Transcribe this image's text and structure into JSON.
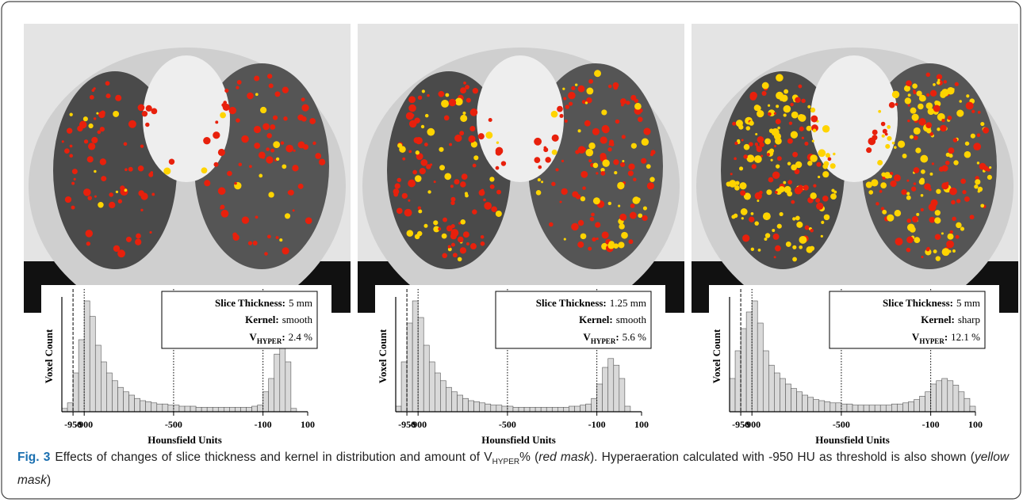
{
  "chart_data": [
    {
      "type": "histogram",
      "y_label": "Voxel Count",
      "x_label": "Hounsfield Units",
      "xlim": [
        -1000,
        100
      ],
      "xticks": [
        -950,
        -900,
        -500,
        -100,
        100
      ],
      "bins": [
        -1000,
        -975,
        -950,
        -925,
        -900,
        -875,
        -850,
        -825,
        -800,
        -775,
        -750,
        -725,
        -700,
        -675,
        -650,
        -625,
        -600,
        -575,
        -550,
        -525,
        -500,
        -475,
        -450,
        -425,
        -400,
        -375,
        -350,
        -325,
        -300,
        -275,
        -250,
        -225,
        -200,
        -175,
        -150,
        -125,
        -100,
        -75,
        -50,
        -25,
        0,
        25,
        50,
        75,
        100
      ],
      "values": [
        3,
        8,
        35,
        65,
        100,
        86,
        60,
        45,
        35,
        28,
        22,
        18,
        15,
        12,
        10,
        9,
        8,
        7,
        7,
        6,
        6,
        5,
        5,
        5,
        4,
        4,
        4,
        4,
        4,
        4,
        4,
        4,
        4,
        4,
        5,
        6,
        18,
        30,
        52,
        62,
        45,
        3,
        0,
        0
      ],
      "color": "#d9d9d9",
      "legend": {
        "slice_label": "Slice Thickness:",
        "slice": "5 mm",
        "kernel_label": "Kernel:",
        "kernel": "smooth",
        "v_label": "V",
        "v_sub": "HYPER",
        "v_suffix": ":",
        "v": "2.4 %"
      }
    },
    {
      "type": "histogram",
      "y_label": "Voxel Count",
      "x_label": "Hounsfield Units",
      "xlim": [
        -1000,
        100
      ],
      "xticks": [
        -950,
        -900,
        -500,
        -100,
        100
      ],
      "bins": [
        -1000,
        -975,
        -950,
        -925,
        -900,
        -875,
        -850,
        -825,
        -800,
        -775,
        -750,
        -725,
        -700,
        -675,
        -650,
        -625,
        -600,
        -575,
        -550,
        -525,
        -500,
        -475,
        -450,
        -425,
        -400,
        -375,
        -350,
        -325,
        -300,
        -275,
        -250,
        -225,
        -200,
        -175,
        -150,
        -125,
        -100,
        -75,
        -50,
        -25,
        0,
        25,
        50,
        75,
        100
      ],
      "values": [
        5,
        45,
        80,
        100,
        85,
        60,
        45,
        35,
        28,
        22,
        18,
        15,
        12,
        10,
        9,
        8,
        7,
        6,
        6,
        5,
        5,
        4,
        4,
        4,
        4,
        4,
        4,
        4,
        4,
        4,
        4,
        5,
        5,
        6,
        7,
        12,
        25,
        40,
        48,
        42,
        30,
        5,
        0,
        0
      ],
      "color": "#d9d9d9",
      "legend": {
        "slice_label": "Slice Thickness:",
        "slice": "1.25 mm",
        "kernel_label": "Kernel:",
        "kernel": "smooth",
        "v_label": "V",
        "v_sub": "HYPER",
        "v_suffix": ":",
        "v": "5.6 %"
      }
    },
    {
      "type": "histogram",
      "y_label": "Voxel Count",
      "x_label": "Hounsfield Units",
      "xlim": [
        -1000,
        100
      ],
      "xticks": [
        -950,
        -900,
        -500,
        -100,
        100
      ],
      "bins": [
        -1000,
        -975,
        -950,
        -925,
        -900,
        -875,
        -850,
        -825,
        -800,
        -775,
        -750,
        -725,
        -700,
        -675,
        -650,
        -625,
        -600,
        -575,
        -550,
        -525,
        -500,
        -475,
        -450,
        -425,
        -400,
        -375,
        -350,
        -325,
        -300,
        -275,
        -250,
        -225,
        -200,
        -175,
        -150,
        -125,
        -100,
        -75,
        -50,
        -25,
        0,
        25,
        50,
        75,
        100
      ],
      "values": [
        30,
        55,
        75,
        90,
        100,
        80,
        55,
        42,
        35,
        30,
        25,
        21,
        18,
        15,
        13,
        11,
        10,
        9,
        8,
        8,
        7,
        7,
        6,
        6,
        6,
        6,
        6,
        6,
        6,
        7,
        7,
        8,
        9,
        11,
        14,
        18,
        25,
        28,
        30,
        28,
        24,
        18,
        12,
        5
      ],
      "color": "#d9d9d9",
      "legend": {
        "slice_label": "Slice Thickness:",
        "slice": "5 mm",
        "kernel_label": "Kernel:",
        "kernel": "sharp",
        "v_label": "V",
        "v_sub": "HYPER",
        "v_suffix": ":",
        "v": "12.1 %"
      }
    }
  ],
  "caption": {
    "label": "Fig. 3",
    "parts": [
      "Effects of changes of slice thickness and kernel in distribution and amount of V",
      "HYPER",
      "% (",
      "red mask",
      "). Hyperaeration calculated with -950 HU as threshold is also shown (",
      "yellow mask",
      ")"
    ]
  }
}
